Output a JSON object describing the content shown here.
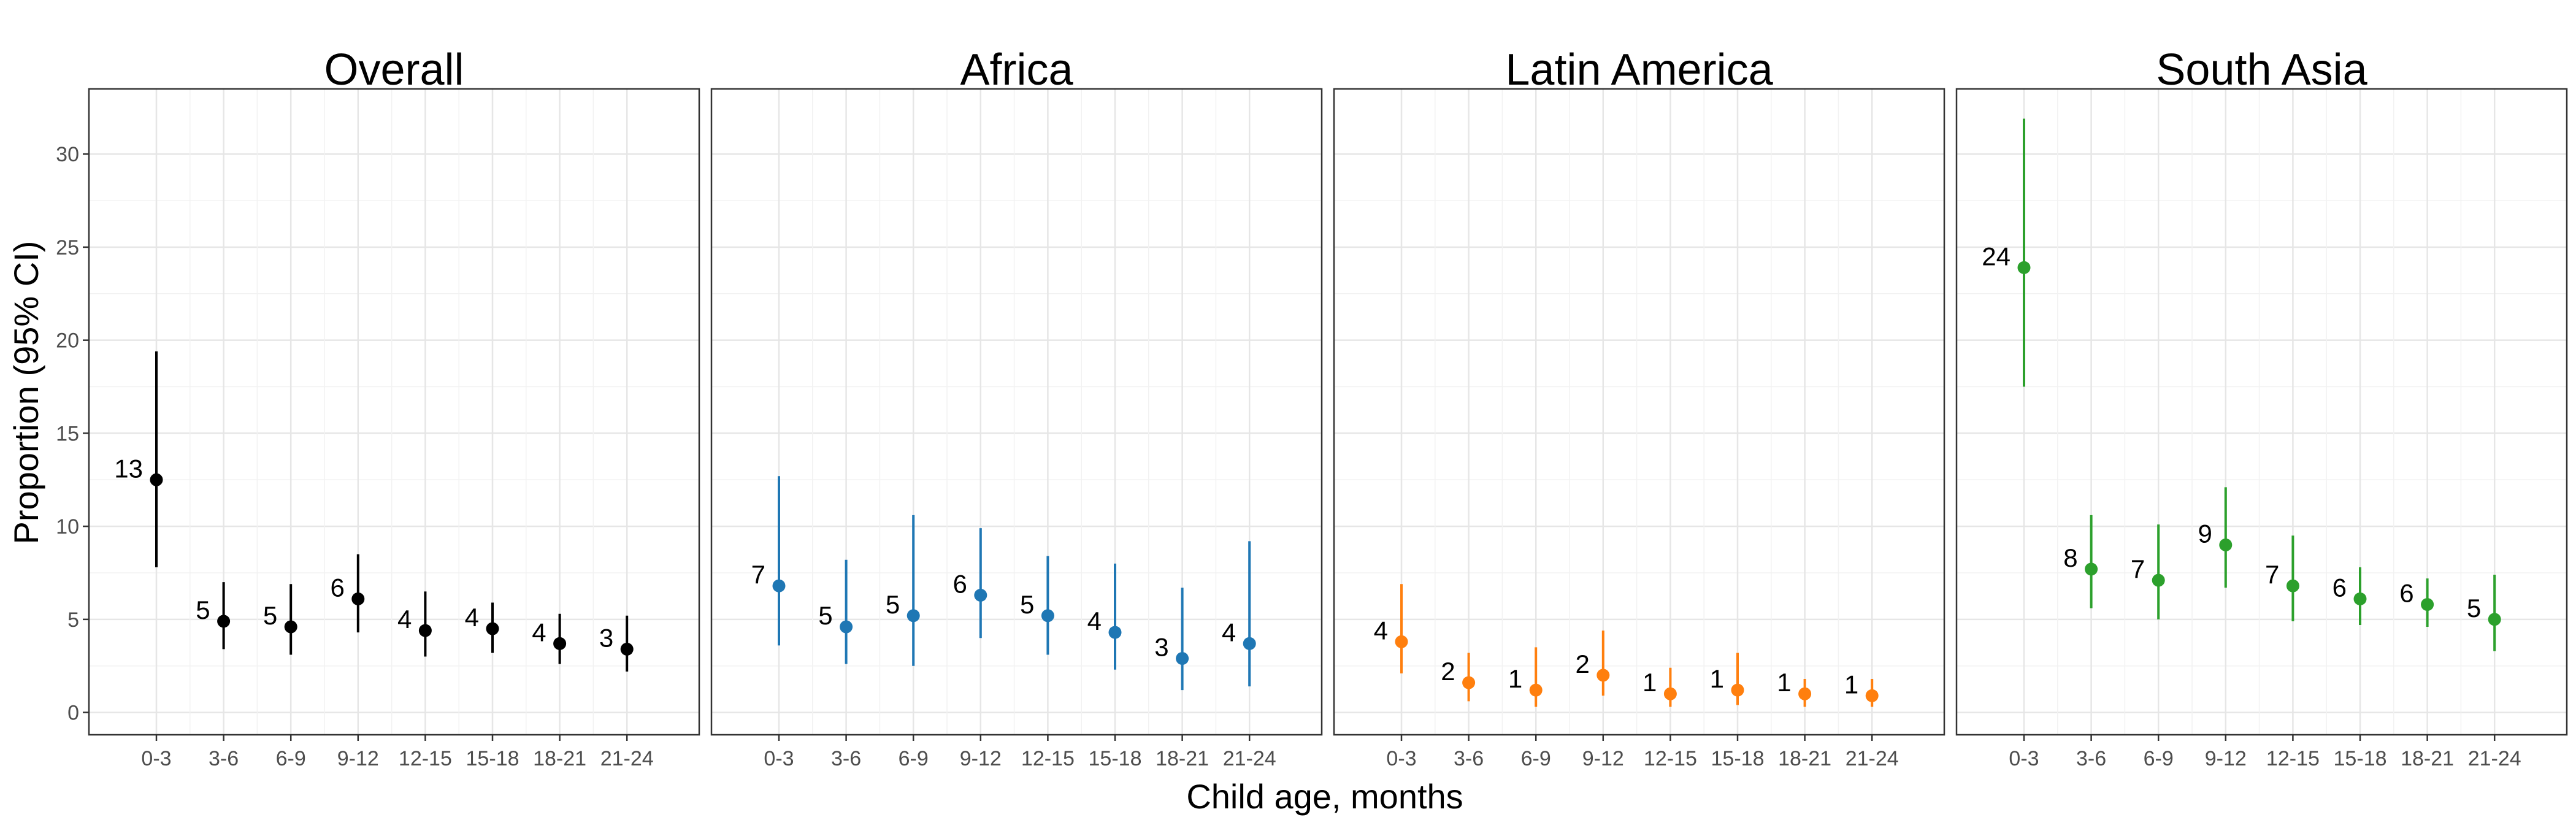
{
  "chart_data": {
    "type": "scatter",
    "subtype": "point-range-faceted",
    "xlabel": "Child age, months",
    "ylabel": "Proportion (95% CI)",
    "ylim": [
      -1.2,
      33.5
    ],
    "yticks": [
      0,
      5,
      10,
      15,
      20,
      25,
      30
    ],
    "categories": [
      "0-3",
      "3-6",
      "6-9",
      "9-12",
      "12-15",
      "15-18",
      "18-21",
      "21-24"
    ],
    "grid": true,
    "legend": "none",
    "panels": [
      {
        "title": "Overall",
        "color": "#000000",
        "values": [
          12.5,
          4.9,
          4.6,
          6.1,
          4.4,
          4.5,
          3.7,
          3.4
        ],
        "lower": [
          7.8,
          3.4,
          3.1,
          4.3,
          3.0,
          3.2,
          2.6,
          2.2
        ],
        "upper": [
          19.4,
          7.0,
          6.9,
          8.5,
          6.5,
          5.9,
          5.3,
          5.2
        ],
        "labels": [
          "13",
          "5",
          "5",
          "6",
          "4",
          "4",
          "4",
          "3"
        ]
      },
      {
        "title": "Africa",
        "color": "#1f77b4",
        "values": [
          6.8,
          4.6,
          5.2,
          6.3,
          5.2,
          4.3,
          2.9,
          3.7
        ],
        "lower": [
          3.6,
          2.6,
          2.5,
          4.0,
          3.1,
          2.3,
          1.2,
          1.4
        ],
        "upper": [
          12.7,
          8.2,
          10.6,
          9.9,
          8.4,
          8.0,
          6.7,
          9.2
        ],
        "labels": [
          "7",
          "5",
          "5",
          "6",
          "5",
          "4",
          "3",
          "4"
        ]
      },
      {
        "title": "Latin America",
        "color": "#ff7f0e",
        "values": [
          3.8,
          1.6,
          1.2,
          2.0,
          1.0,
          1.2,
          1.0,
          0.9
        ],
        "lower": [
          2.1,
          0.6,
          0.3,
          0.9,
          0.3,
          0.4,
          0.3,
          0.3
        ],
        "upper": [
          6.9,
          3.2,
          3.5,
          4.4,
          2.4,
          3.2,
          1.8,
          1.8
        ],
        "labels": [
          "4",
          "2",
          "1",
          "2",
          "1",
          "1",
          "1",
          "1"
        ]
      },
      {
        "title": "South Asia",
        "color": "#2ca02c",
        "values": [
          23.9,
          7.7,
          7.1,
          9.0,
          6.8,
          6.1,
          5.8,
          5.0
        ],
        "lower": [
          17.5,
          5.6,
          5.0,
          6.7,
          4.9,
          4.7,
          4.6,
          3.3
        ],
        "upper": [
          31.9,
          10.6,
          10.1,
          12.1,
          9.5,
          7.8,
          7.2,
          7.4
        ],
        "labels": [
          "24",
          "8",
          "7",
          "9",
          "7",
          "6",
          "6",
          "5"
        ]
      }
    ]
  }
}
